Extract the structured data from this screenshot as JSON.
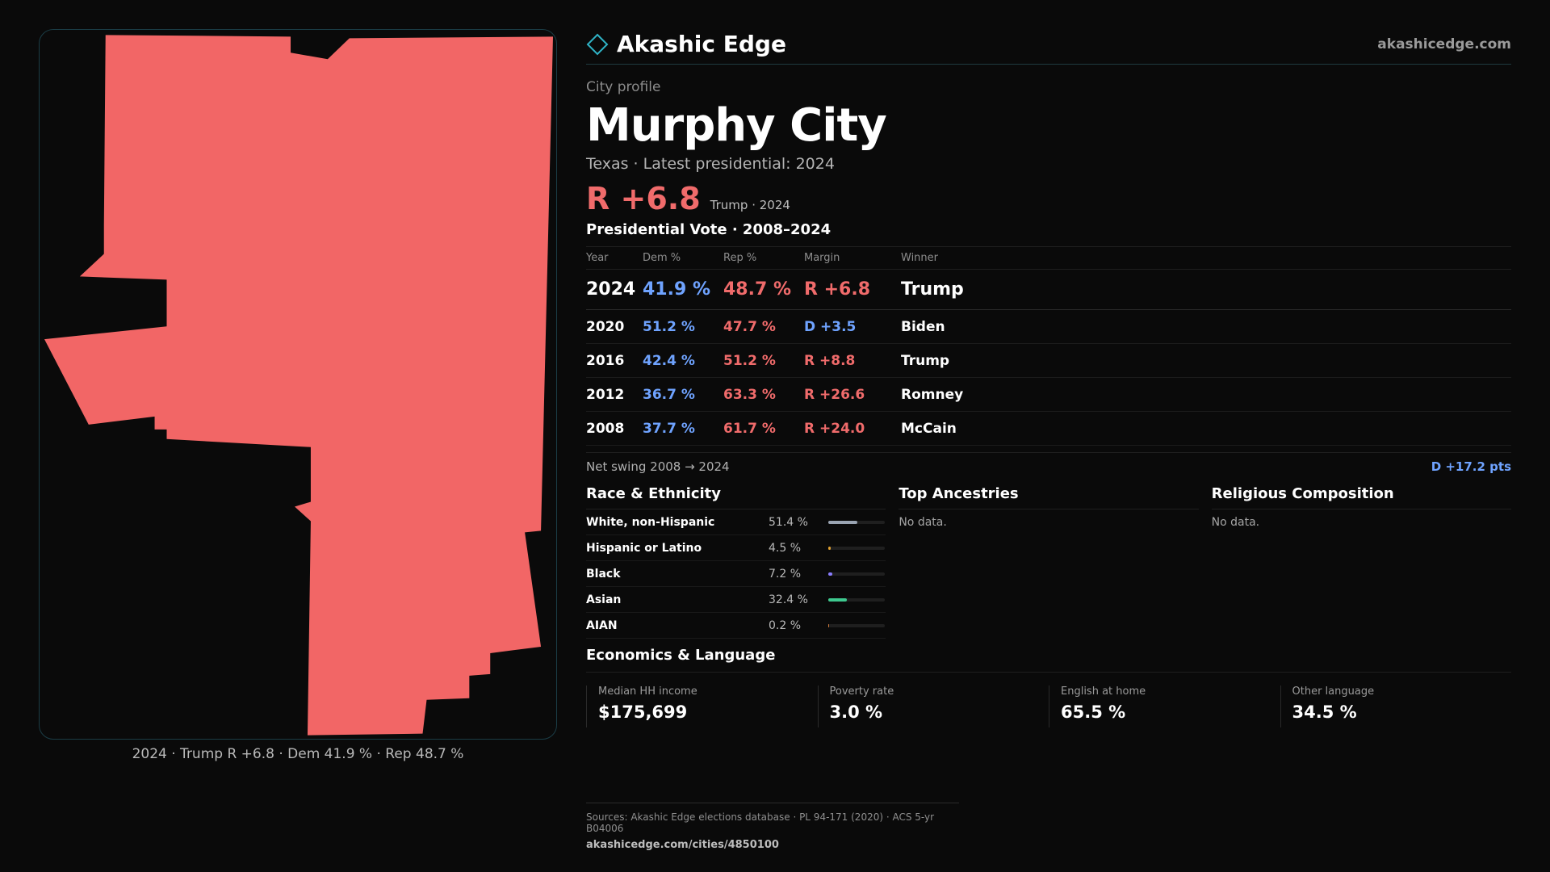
{
  "map": {
    "fill_color": "#f26666",
    "caption": "2024 · Trump R +6.8 · Dem 41.9 % · Rep 48.7 %"
  },
  "header": {
    "brand": "Akashic Edge",
    "brand_icon": "diamond-logo-icon",
    "site": "akashicedge.com"
  },
  "profile": {
    "eyebrow": "City profile",
    "title": "Murphy City",
    "subtitle": "Texas · Latest presidential: 2024",
    "margin": "R +6.8",
    "margin_note": "Trump · 2024"
  },
  "votes": {
    "title": "Presidential Vote · 2008–2024",
    "columns": [
      "Year",
      "Dem %",
      "Rep %",
      "Margin",
      "Winner"
    ],
    "rows": [
      {
        "year": "2024",
        "dem": "41.9 %",
        "rep": "48.7 %",
        "margin": "R +6.8",
        "winner": "Trump"
      },
      {
        "year": "2020",
        "dem": "51.2 %",
        "rep": "47.7 %",
        "margin": "D +3.5",
        "winner": "Biden"
      },
      {
        "year": "2016",
        "dem": "42.4 %",
        "rep": "51.2 %",
        "margin": "R +8.8",
        "winner": "Trump"
      },
      {
        "year": "2012",
        "dem": "36.7 %",
        "rep": "63.3 %",
        "margin": "R +26.6",
        "winner": "Romney"
      },
      {
        "year": "2008",
        "dem": "37.7 %",
        "rep": "61.7 %",
        "margin": "R +24.0",
        "winner": "McCain"
      }
    ],
    "swing_label": "Net swing 2008 → 2024",
    "swing_value": "D +17.2 pts"
  },
  "race": {
    "title": "Race & Ethnicity",
    "rows": [
      {
        "name": "White, non-Hispanic",
        "pct": "51.4 %",
        "value": 51.4,
        "color": "#9aa4b2"
      },
      {
        "name": "Hispanic or Latino",
        "pct": "4.5 %",
        "value": 4.5,
        "color": "#e0a030"
      },
      {
        "name": "Black",
        "pct": "7.2 %",
        "value": 7.2,
        "color": "#8a7dff"
      },
      {
        "name": "Asian",
        "pct": "32.4 %",
        "value": 32.4,
        "color": "#3ec98f"
      },
      {
        "name": "AIAN",
        "pct": "0.2 %",
        "value": 0.2,
        "color": "#d07a3a"
      }
    ]
  },
  "ancestries": {
    "title": "Top Ancestries",
    "empty": "No data."
  },
  "religion": {
    "title": "Religious Composition",
    "empty": "No data."
  },
  "economics": {
    "title": "Economics & Language",
    "cards": [
      {
        "label": "Median HH income",
        "value": "$175,699"
      },
      {
        "label": "Poverty rate",
        "value": "3.0 %"
      },
      {
        "label": "English at home",
        "value": "65.5 %"
      },
      {
        "label": "Other language",
        "value": "34.5 %"
      }
    ]
  },
  "footer": {
    "sources": "Sources: Akashic Edge elections database · PL 94-171 (2020) · ACS 5-yr B04006",
    "url": "akashicedge.com/cities/4850100"
  }
}
